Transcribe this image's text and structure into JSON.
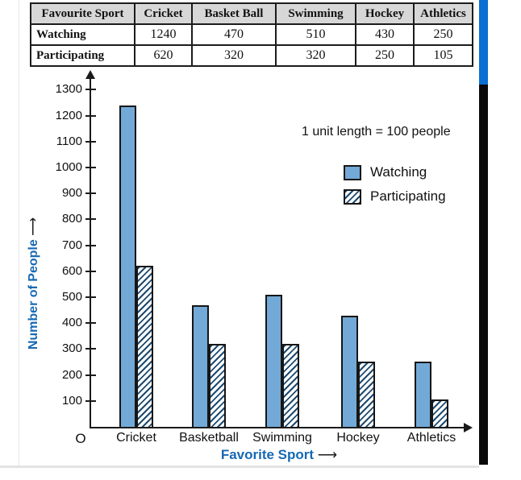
{
  "table": {
    "columns": [
      "Favourite Sport",
      "Cricket",
      "Basket Ball",
      "Swimming",
      "Hockey",
      "Athletics"
    ],
    "rows": [
      {
        "label": "Watching",
        "values": [
          "1240",
          "470",
          "510",
          "430",
          "250"
        ]
      },
      {
        "label": "Participating",
        "values": [
          "620",
          "320",
          "320",
          "250",
          "105"
        ]
      }
    ]
  },
  "chart_data": {
    "type": "bar",
    "categories": [
      "Cricket",
      "Basketball",
      "Swimming",
      "Hockey",
      "Athletics"
    ],
    "series": [
      {
        "name": "Watching",
        "style": "solid",
        "values": [
          1240,
          470,
          510,
          430,
          250
        ]
      },
      {
        "name": "Participating",
        "style": "hatched",
        "values": [
          620,
          320,
          320,
          250,
          105
        ]
      }
    ],
    "note": "1 unit length = 100 people",
    "xlabel": "Favorite Sport",
    "ylabel": "Number of People",
    "origin_label": "O",
    "arrow": "⟶",
    "y_ticks": [
      100,
      200,
      300,
      400,
      500,
      600,
      700,
      800,
      900,
      1000,
      1100,
      1200,
      1300
    ],
    "ylim": [
      0,
      1300
    ],
    "grid": false,
    "legend_position": "upper-right",
    "colors": {
      "bar_fill": "#72a9d6",
      "hatch_stripe": "#1c4a70",
      "hatch_bg": "#ffffff",
      "axis_title_blue": "#1668b3"
    }
  },
  "decor": {
    "stripe_blue": "#0b6fd3",
    "stripe_black": "#0a0a0a"
  }
}
